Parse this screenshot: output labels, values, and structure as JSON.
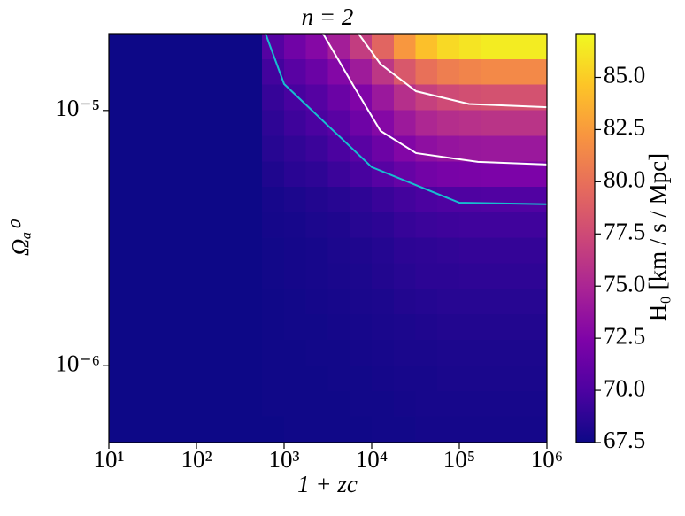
{
  "chart_data": {
    "type": "heatmap",
    "title": "n = 2",
    "xlabel": "1 + zc",
    "ylabel": "Ωₐ⁰",
    "colorbar_label": "H₀ [km / s / Mpc]",
    "xscale": "log",
    "yscale": "log",
    "xlim": [
      10,
      1000000
    ],
    "ylim": [
      5e-07,
      2e-05
    ],
    "xticks": [
      {
        "value": 10,
        "label": "10¹"
      },
      {
        "value": 100,
        "label": "10²"
      },
      {
        "value": 1000,
        "label": "10³"
      },
      {
        "value": 10000,
        "label": "10⁴"
      },
      {
        "value": 100000,
        "label": "10⁵"
      },
      {
        "value": 1000000,
        "label": "10⁶"
      }
    ],
    "yticks": [
      {
        "value": 1e-06,
        "label": "10⁻⁶"
      },
      {
        "value": 1e-05,
        "label": "10⁻⁵"
      }
    ],
    "clim": [
      67.5,
      87.1
    ],
    "cticks": [
      67.5,
      {
        "value": 70.0,
        "label": "70.0"
      },
      72.5,
      {
        "value": 75.0,
        "label": "75.0"
      },
      77.5,
      {
        "value": 80.0,
        "label": "80.0"
      },
      82.5,
      {
        "value": 85.0,
        "label": "85.0"
      }
    ],
    "colors": [
      "#0d0887",
      "#4c02a1",
      "#7e03a8",
      "#a92395",
      "#cc4778",
      "#e66c5c",
      "#f89540",
      "#fdc527",
      "#f0f921"
    ],
    "xbins": [
      10,
      17.78,
      31.62,
      56.23,
      100,
      177.8,
      316.2,
      562.3,
      1000,
      1778,
      3162,
      5623,
      10000,
      17783,
      31623,
      56234,
      100000,
      177828,
      316228,
      562341,
      1000000
    ],
    "ybins": [
      2e-05,
      1.589e-05,
      1.262e-05,
      1.002e-05,
      7.96e-06,
      6.32e-06,
      5.02e-06,
      3.99e-06,
      3.17e-06,
      2.52e-06,
      2e-06,
      1.589e-06,
      1.262e-06,
      1.002e-06,
      7.96e-07,
      6.32e-07,
      5e-07
    ],
    "values": [
      [
        67.5,
        67.5,
        67.5,
        67.5,
        67.5,
        67.5,
        67.5,
        70.4,
        71.7,
        72.8,
        74.5,
        76.6,
        79.3,
        82.3,
        84.4,
        85.6,
        86.1,
        86.5,
        86.5,
        86.5
      ],
      [
        67.5,
        67.5,
        67.5,
        67.5,
        67.5,
        67.5,
        67.5,
        69.6,
        70.6,
        71.4,
        72.7,
        74.2,
        76.2,
        78.4,
        80.0,
        80.8,
        81.2,
        81.5,
        81.5,
        81.5
      ],
      [
        67.5,
        67.5,
        67.5,
        67.5,
        67.5,
        67.5,
        67.5,
        69.1,
        69.8,
        70.4,
        71.4,
        72.5,
        74.0,
        75.7,
        76.8,
        77.5,
        77.8,
        78.0,
        78.0,
        78.0
      ],
      [
        67.5,
        67.5,
        67.5,
        67.5,
        67.5,
        67.5,
        67.5,
        68.8,
        69.4,
        69.9,
        70.6,
        71.6,
        72.8,
        74.1,
        75.1,
        75.6,
        75.8,
        76.0,
        76.0,
        76.0
      ],
      [
        67.5,
        67.5,
        67.5,
        67.5,
        67.5,
        67.5,
        67.5,
        68.5,
        68.9,
        69.3,
        69.9,
        70.6,
        71.5,
        72.6,
        73.3,
        73.7,
        73.9,
        74.0,
        74.0,
        74.0
      ],
      [
        67.5,
        67.5,
        67.5,
        67.5,
        67.5,
        67.5,
        67.5,
        68.2,
        68.6,
        68.8,
        69.3,
        69.8,
        70.5,
        71.2,
        71.8,
        72.1,
        72.2,
        72.3,
        72.3,
        72.3
      ],
      [
        67.5,
        67.5,
        67.5,
        67.5,
        67.5,
        67.5,
        67.5,
        67.9,
        68.1,
        68.3,
        68.5,
        68.8,
        69.2,
        69.6,
        69.9,
        70.1,
        70.1,
        70.2,
        70.2,
        70.2
      ],
      [
        67.5,
        67.5,
        67.5,
        67.5,
        67.5,
        67.5,
        67.5,
        67.8,
        67.9,
        68.1,
        68.2,
        68.5,
        68.7,
        69.1,
        69.3,
        69.4,
        69.5,
        69.5,
        69.5,
        69.5
      ],
      [
        67.5,
        67.5,
        67.5,
        67.5,
        67.5,
        67.5,
        67.5,
        67.7,
        67.8,
        67.9,
        68.1,
        68.2,
        68.4,
        68.7,
        68.8,
        68.9,
        69.0,
        69.0,
        69.0,
        69.0
      ],
      [
        67.5,
        67.5,
        67.5,
        67.5,
        67.5,
        67.5,
        67.5,
        67.7,
        67.8,
        67.9,
        68.0,
        68.1,
        68.3,
        68.5,
        68.7,
        68.7,
        68.8,
        68.8,
        68.8,
        68.8
      ],
      [
        67.5,
        67.5,
        67.5,
        67.5,
        67.5,
        67.5,
        67.5,
        67.6,
        67.7,
        67.8,
        67.9,
        68.0,
        68.1,
        68.3,
        68.4,
        68.5,
        68.5,
        68.5,
        68.5,
        68.5
      ],
      [
        67.5,
        67.5,
        67.5,
        67.5,
        67.5,
        67.5,
        67.5,
        67.6,
        67.7,
        67.7,
        67.8,
        67.9,
        68.0,
        68.1,
        68.2,
        68.3,
        68.3,
        68.3,
        68.3,
        68.3
      ],
      [
        67.5,
        67.5,
        67.5,
        67.5,
        67.5,
        67.5,
        67.5,
        67.6,
        67.6,
        67.7,
        67.7,
        67.8,
        67.9,
        68.0,
        68.0,
        68.1,
        68.1,
        68.1,
        68.1,
        68.1
      ],
      [
        67.5,
        67.5,
        67.5,
        67.5,
        67.5,
        67.5,
        67.5,
        67.6,
        67.6,
        67.6,
        67.7,
        67.7,
        67.8,
        67.9,
        67.9,
        68.0,
        68.0,
        68.0,
        68.0,
        68.0
      ],
      [
        67.5,
        67.5,
        67.5,
        67.5,
        67.5,
        67.5,
        67.5,
        67.6,
        67.6,
        67.6,
        67.6,
        67.7,
        67.7,
        67.8,
        67.9,
        67.9,
        67.9,
        67.9,
        67.9,
        67.9
      ],
      [
        67.5,
        67.5,
        67.5,
        67.5,
        67.5,
        67.5,
        67.5,
        67.5,
        67.6,
        67.6,
        67.6,
        67.6,
        67.7,
        67.7,
        67.8,
        67.8,
        67.8,
        67.8,
        67.8,
        67.8
      ]
    ],
    "contours": [
      {
        "color": "#17becf",
        "x": [
          614,
          1000,
          10000,
          100000,
          1000000
        ],
        "y": [
          2e-05,
          1.27e-05,
          6e-06,
          4.35e-06,
          4.29e-06
        ]
      },
      {
        "color": "#ffffff",
        "x": [
          2780,
          6280,
          12600,
          32000,
          163000,
          1000000
        ],
        "y": [
          2e-05,
          1.24e-05,
          8.32e-06,
          6.81e-06,
          6.29e-06,
          6.14e-06
        ]
      },
      {
        "color": "#ffffff",
        "x": [
          7050,
          12600,
          32000,
          129000,
          1000000
        ],
        "y": [
          2e-05,
          1.52e-05,
          1.19e-05,
          1.06e-05,
          1.03e-05
        ]
      }
    ]
  }
}
